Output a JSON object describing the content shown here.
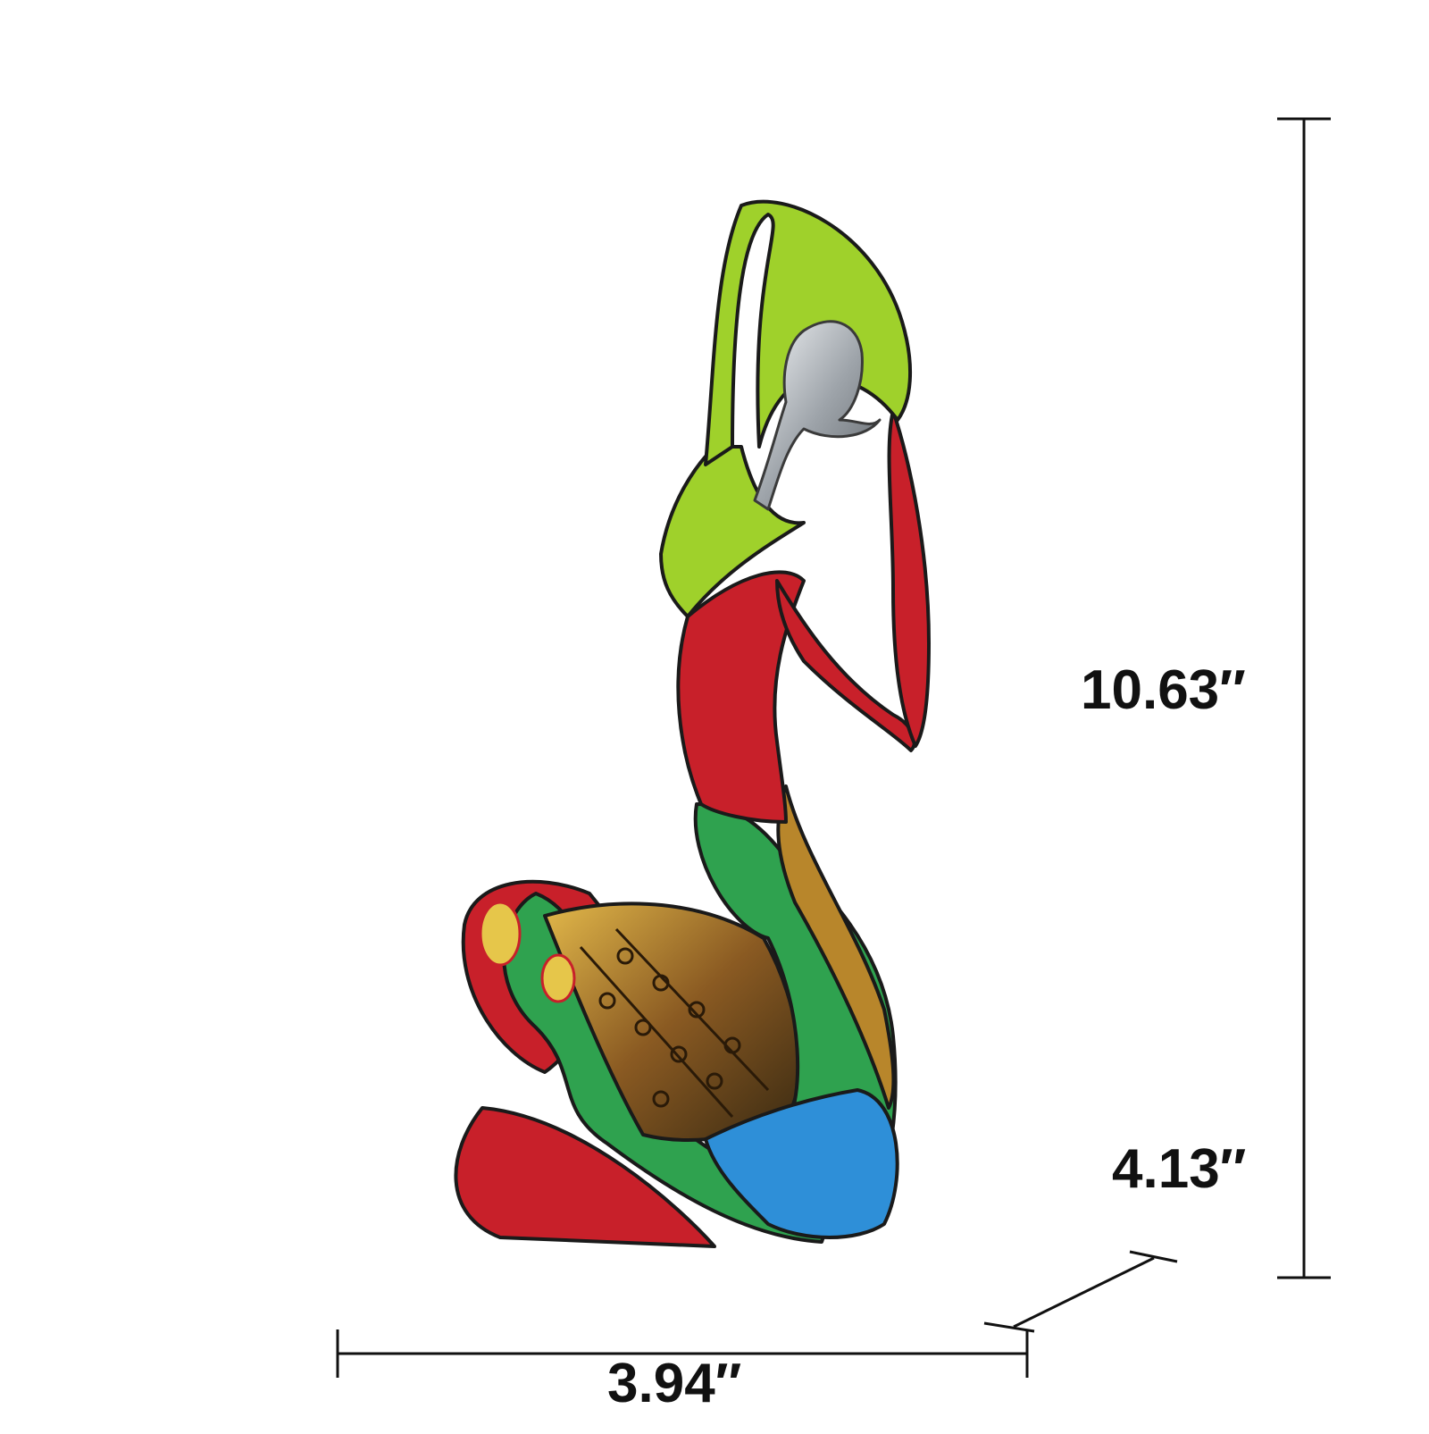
{
  "dimensions": {
    "height": "10.63″",
    "depth": "4.13″",
    "width": "3.94″"
  },
  "colors": {
    "background": "#ffffff",
    "line": "#111111",
    "red": "#c8202a",
    "green": "#2fa24f",
    "lime": "#9fd12b",
    "blue": "#2e8fd8",
    "bronze": "#8a5a22",
    "silver": "#c9cdd2"
  }
}
